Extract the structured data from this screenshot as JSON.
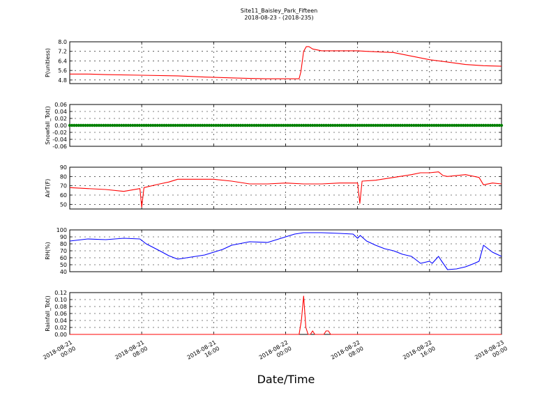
{
  "header": {
    "title": "Site11_Baisley_Park_Fifteen",
    "subtitle": "2018-08-23 - (2018-235)"
  },
  "x_axis_label": "Date/Time",
  "x_ticks": [
    {
      "line1": "2018-08-21",
      "line2": "00:00"
    },
    {
      "line1": "2018-08-21",
      "line2": "08:00"
    },
    {
      "line1": "2018-08-21",
      "line2": "16:00"
    },
    {
      "line1": "2018-08-22",
      "line2": "00:00"
    },
    {
      "line1": "2018-08-22",
      "line2": "08:00"
    },
    {
      "line1": "2018-08-22",
      "line2": "16:00"
    },
    {
      "line1": "2018-08-23",
      "line2": "00:00"
    }
  ],
  "chart_data": [
    {
      "type": "line",
      "ylabel": "P(unitless)",
      "ylim": [
        4.5,
        8.0
      ],
      "yticks": [
        "4.8",
        "5.6",
        "6.4",
        "7.2",
        "8.0"
      ],
      "ytick_values": [
        4.8,
        5.6,
        6.4,
        7.2,
        8.0
      ],
      "grid": true,
      "color": "#ff0000",
      "x": [
        0,
        2,
        4,
        8,
        12,
        15,
        18,
        20,
        22,
        24,
        25.5,
        25.7,
        26,
        26.3,
        26.6,
        27,
        28,
        30,
        32,
        33,
        36,
        38,
        40,
        42,
        44,
        46,
        48
      ],
      "values": [
        5.3,
        5.3,
        5.25,
        5.2,
        5.15,
        5.05,
        4.98,
        4.93,
        4.9,
        4.9,
        4.9,
        5.5,
        7.2,
        7.6,
        7.6,
        7.4,
        7.25,
        7.25,
        7.25,
        7.2,
        7.1,
        6.8,
        6.5,
        6.3,
        6.1,
        6.0,
        5.95
      ]
    },
    {
      "type": "scatter",
      "ylabel": "Snowfall_Tot()",
      "ylim": [
        -0.06,
        0.06
      ],
      "yticks": [
        "-0.06",
        "-0.04",
        "-0.02",
        "0.00",
        "0.02",
        "0.04",
        "0.06"
      ],
      "ytick_values": [
        -0.06,
        -0.04,
        -0.02,
        0,
        0.02,
        0.04,
        0.06
      ],
      "grid": true,
      "color": "#008000",
      "constant_value": 0.0,
      "x_range": [
        0,
        48
      ],
      "interval_hours": 0.25
    },
    {
      "type": "line",
      "ylabel": "AirT(F)",
      "ylim": [
        45,
        90
      ],
      "yticks": [
        "50",
        "60",
        "70",
        "80",
        "90"
      ],
      "ytick_values": [
        50,
        60,
        70,
        80,
        90
      ],
      "grid": true,
      "color": "#ff0000",
      "x": [
        0,
        2,
        4,
        6,
        7.8,
        8.0,
        8.25,
        10,
        11,
        12,
        14,
        16,
        18,
        20,
        22,
        24,
        26,
        28,
        30,
        32,
        32.25,
        32.5,
        34,
        36,
        38,
        39,
        40,
        41,
        41.5,
        42,
        44,
        45.5,
        46,
        47,
        48
      ],
      "values": [
        68,
        67,
        66,
        64,
        67,
        47,
        68,
        72,
        74,
        77,
        77,
        77,
        75,
        72,
        72,
        73,
        72,
        72,
        73,
        73,
        51,
        75,
        76,
        79,
        82,
        84,
        84,
        85,
        81,
        80,
        82,
        79,
        71,
        73,
        72
      ]
    },
    {
      "type": "line",
      "ylabel": "RH(%)",
      "ylim": [
        40,
        100
      ],
      "yticks": [
        "40",
        "50",
        "60",
        "70",
        "80",
        "90",
        "100"
      ],
      "ytick_values": [
        40,
        50,
        60,
        70,
        80,
        90,
        100
      ],
      "grid": true,
      "color": "#0000ff",
      "x": [
        0,
        2,
        4,
        6,
        7.8,
        8.5,
        10,
        11,
        12,
        13,
        14,
        15,
        16,
        17,
        18,
        20,
        22,
        23,
        24,
        25,
        26,
        28,
        30,
        31.5,
        32,
        32.3,
        33,
        34,
        35,
        36,
        37,
        38,
        38.5,
        39,
        40,
        40.3,
        41,
        41.3,
        42,
        43,
        44,
        45,
        45.5,
        46,
        47,
        48
      ],
      "values": [
        84,
        87,
        86,
        88,
        87,
        80,
        70,
        63,
        58,
        60,
        62,
        64,
        68,
        72,
        78,
        83,
        82,
        86,
        90,
        94,
        96,
        96,
        95,
        94,
        88,
        92,
        84,
        78,
        73,
        70,
        65,
        62,
        57,
        52,
        55,
        52,
        62,
        56,
        43,
        44,
        47,
        52,
        55,
        78,
        68,
        62
      ]
    },
    {
      "type": "line",
      "ylabel": "Rainfall_Tot()",
      "ylim": [
        0,
        0.12
      ],
      "yticks": [
        "0.00",
        "0.02",
        "0.04",
        "0.06",
        "0.08",
        "0.10",
        "0.12"
      ],
      "ytick_values": [
        0,
        0.02,
        0.04,
        0.06,
        0.08,
        0.1,
        0.12
      ],
      "grid": true,
      "color": "#ff0000",
      "x": [
        0,
        25.5,
        25.75,
        26.0,
        26.25,
        26.5,
        26.75,
        27.0,
        27.25,
        28.0,
        28.25,
        28.5,
        28.75,
        29.0,
        48
      ],
      "values": [
        0,
        0,
        0.04,
        0.11,
        0.02,
        0,
        0,
        0.01,
        0,
        0,
        0,
        0.01,
        0.01,
        0,
        0
      ]
    }
  ]
}
